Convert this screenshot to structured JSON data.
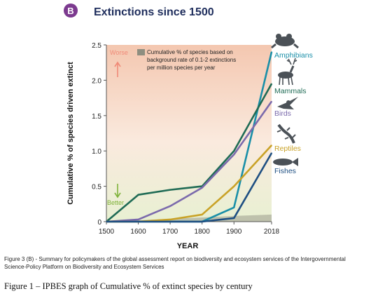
{
  "badge": "B",
  "caption_figure3": "Figure 3 (B) - Summary for policymakers of the global assessment report on biodiversity and ecosystem services of the Intergovernmental Science-Policy Platform on Biodiversity and Ecosystem Services",
  "caption_figure1": "Figure 1 – IPBES graph of Cumulative % of extinct species by century",
  "chart_data": {
    "type": "line",
    "title": "Extinctions since 1500",
    "xlabel": "YEAR",
    "ylabel": "Cumulative % of species driven extinct",
    "x": [
      1500,
      1600,
      1700,
      1800,
      1900,
      2018
    ],
    "x_tick_labels": [
      "1500",
      "1600",
      "1700",
      "1800",
      "1900",
      "2018"
    ],
    "ylim": [
      0,
      2.5
    ],
    "y_ticks": [
      0,
      0.5,
      1.0,
      1.5,
      2.0,
      2.5
    ],
    "y_tick_labels": [
      "0",
      "0.5",
      "1.0",
      "1.5",
      "2.0",
      "2.5"
    ],
    "grid": false,
    "region_labels": {
      "worse": "Worse",
      "better": "Better"
    },
    "background_rate": {
      "label": "Cumulative % of species based on background rate of 0.1-2 extinctions per million species per year",
      "values": [
        0,
        0.02,
        0.04,
        0.06,
        0.08,
        0.1
      ]
    },
    "series": [
      {
        "name": "Amphibians",
        "color": "#1a8fa8",
        "icon": "frog-icon",
        "values": [
          0,
          0,
          0,
          0,
          0.2,
          2.4
        ]
      },
      {
        "name": "Mammals",
        "color": "#1f6b55",
        "icon": "deer-icon",
        "values": [
          0,
          0.38,
          0.45,
          0.5,
          1.0,
          1.95
        ]
      },
      {
        "name": "Birds",
        "color": "#7b6aac",
        "icon": "bird-icon",
        "values": [
          0,
          0.03,
          0.22,
          0.48,
          0.95,
          1.7
        ]
      },
      {
        "name": "Reptiles",
        "color": "#c9a227",
        "icon": "lizard-icon",
        "values": [
          0,
          0,
          0.03,
          0.1,
          0.5,
          1.08
        ]
      },
      {
        "name": "Fishes",
        "color": "#1e4f82",
        "icon": "fish-icon",
        "values": [
          0,
          0,
          0,
          0,
          0.05,
          0.97
        ]
      }
    ]
  }
}
